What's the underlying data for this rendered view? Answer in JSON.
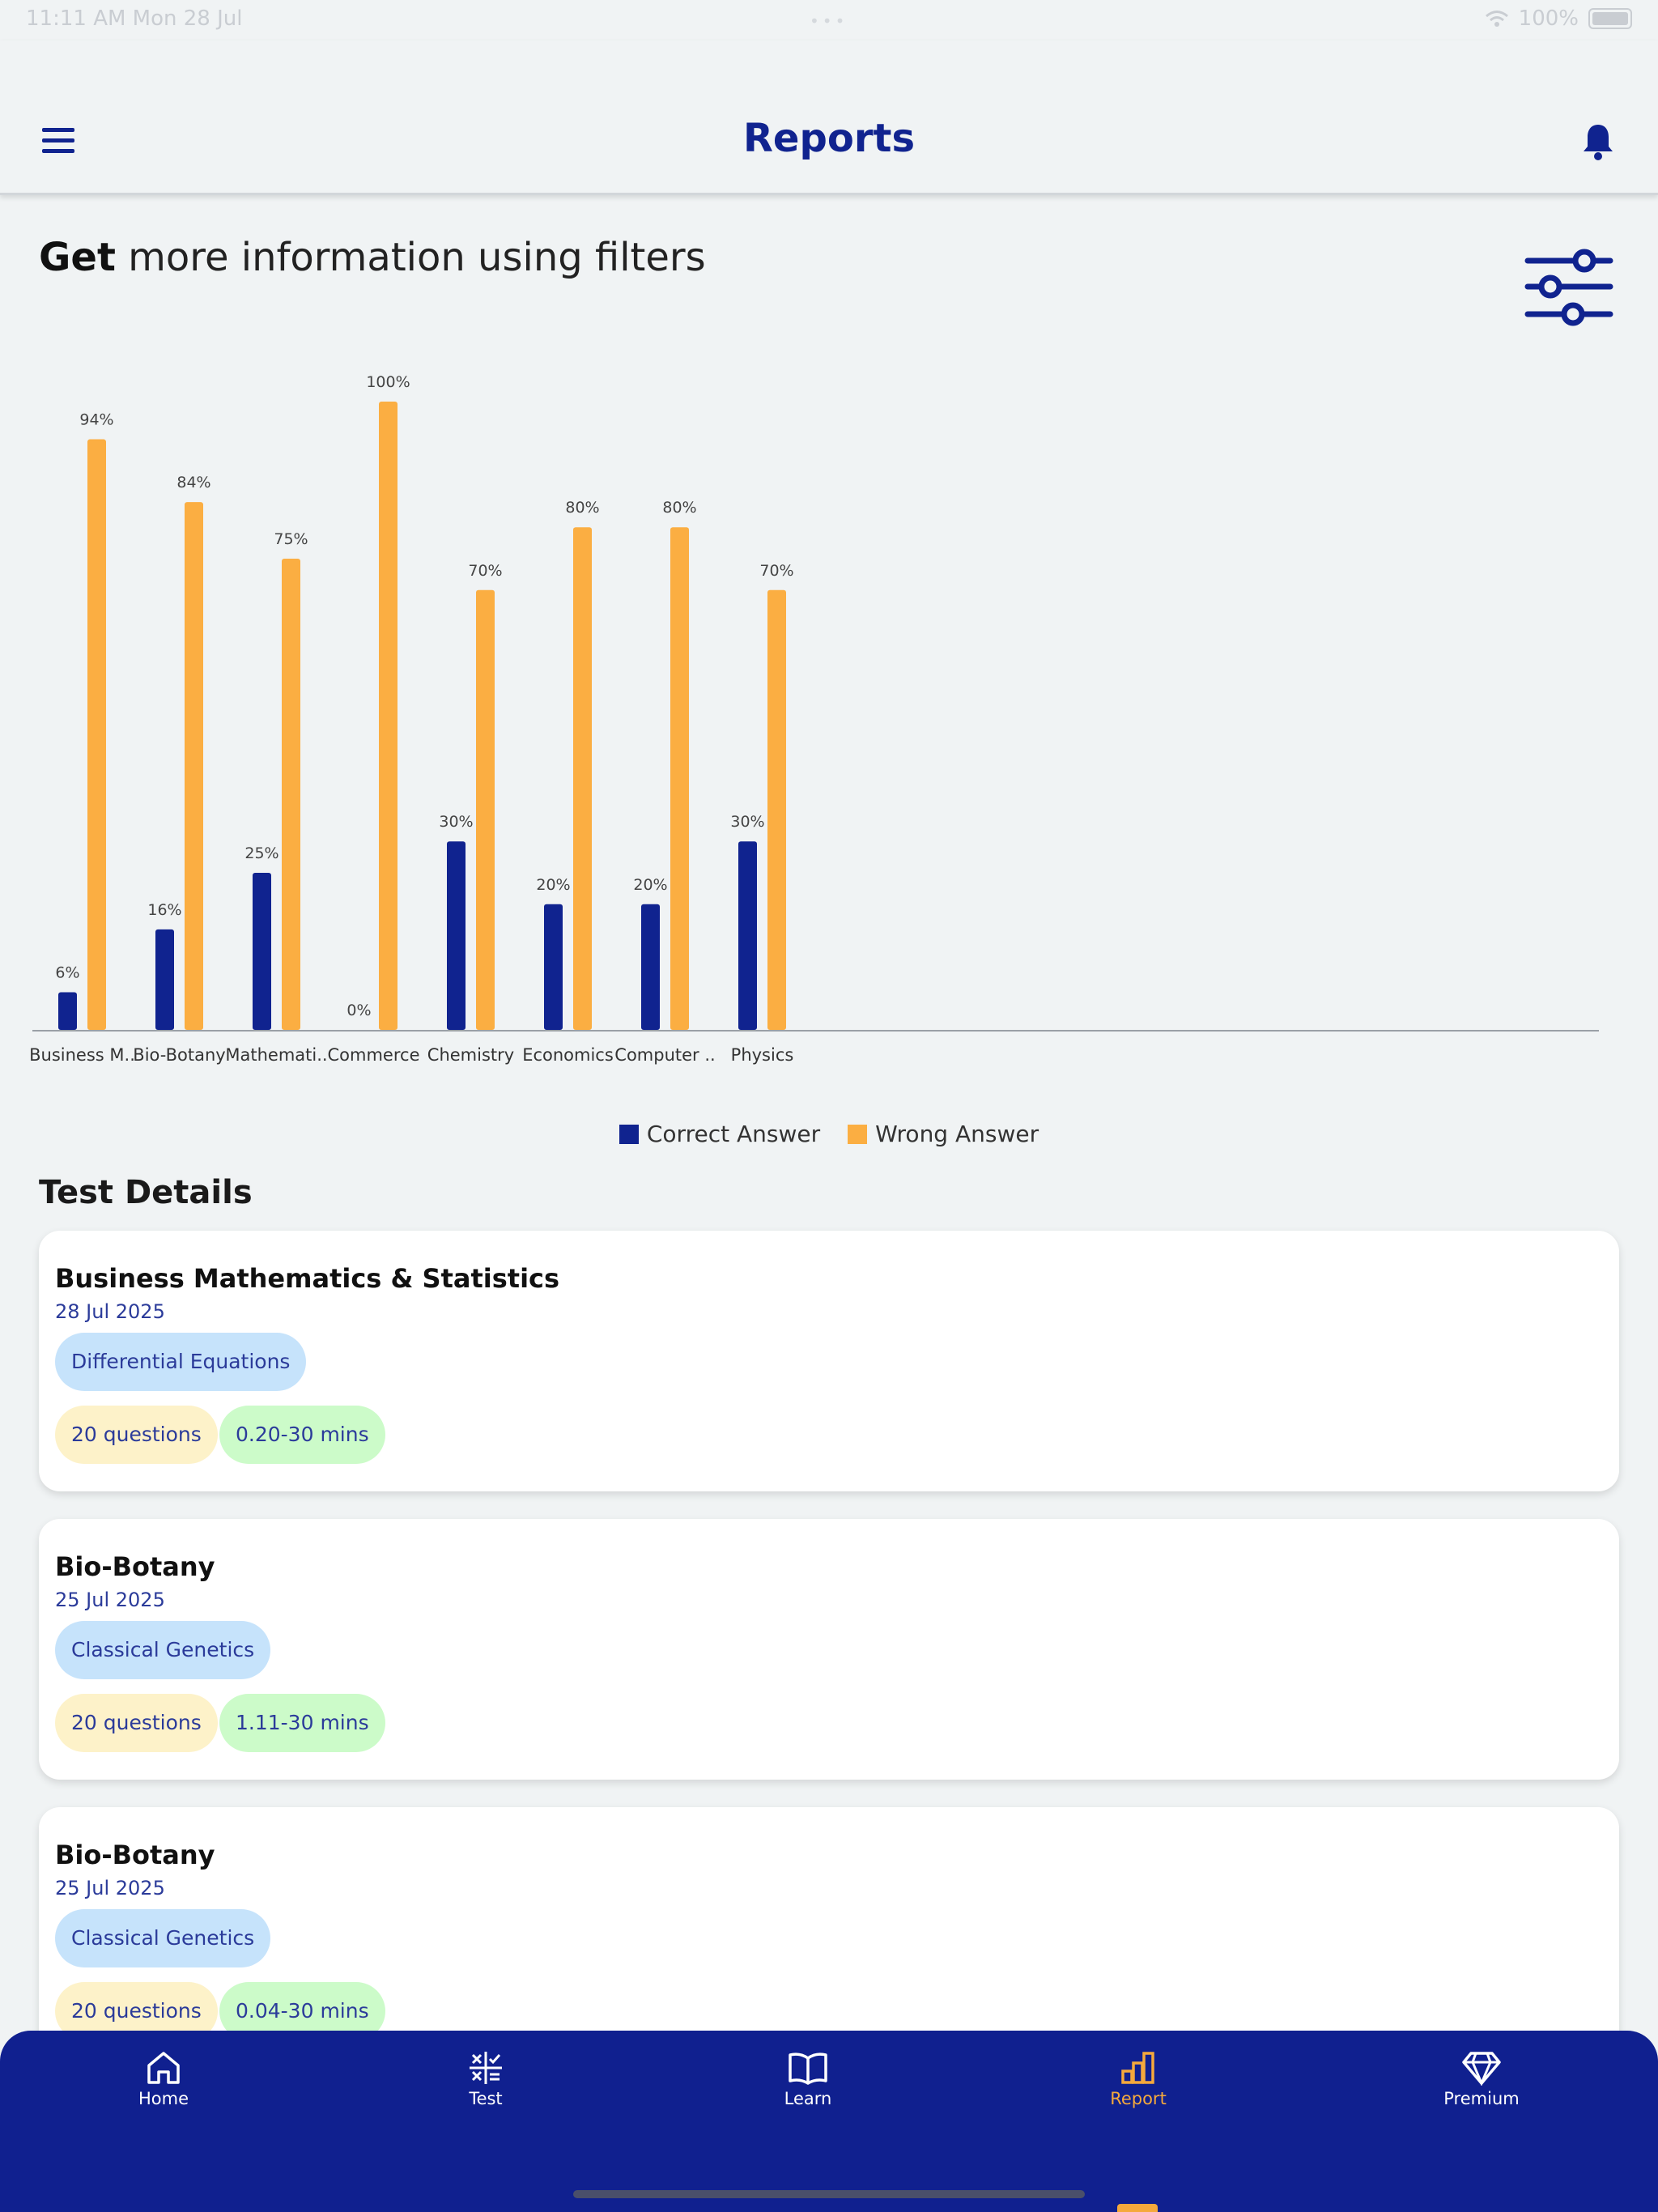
{
  "status": {
    "time": "11:11 AM  Mon 28 Jul",
    "battery": "100%"
  },
  "header": {
    "title": "Reports"
  },
  "filter": {
    "bold": "Get",
    "text": " more information using filters"
  },
  "colors": {
    "primary": "#10238f",
    "correct": "#10238f",
    "wrong": "#fbae42"
  },
  "chart_data": {
    "type": "bar",
    "categories": [
      "Business M..",
      "Bio-Botany",
      "Mathemati..",
      "Commerce",
      "Chemistry",
      "Economics",
      "Computer ..",
      "Physics"
    ],
    "series": [
      {
        "name": "Correct Answer",
        "values": [
          6,
          16,
          25,
          0,
          30,
          20,
          20,
          30
        ]
      },
      {
        "name": "Wrong Answer",
        "values": [
          94,
          84,
          75,
          100,
          70,
          80,
          80,
          70
        ]
      }
    ],
    "value_suffix": "%",
    "ylim": [
      0,
      100
    ],
    "grid": false,
    "legend": "bottom-center"
  },
  "legend": {
    "correct": "Correct Answer",
    "wrong": "Wrong Answer"
  },
  "section": {
    "title": "Test Details"
  },
  "tests": [
    {
      "subject": "Business Mathematics & Statistics",
      "date": "28 Jul 2025",
      "topic": "Differential Equations",
      "questions": "20 questions",
      "time": "0.20-30 mins"
    },
    {
      "subject": "Bio-Botany",
      "date": "25 Jul 2025",
      "topic": "Classical Genetics",
      "questions": "20 questions",
      "time": "1.11-30 mins"
    },
    {
      "subject": "Bio-Botany",
      "date": "25 Jul 2025",
      "topic": "Classical Genetics",
      "questions": "20 questions",
      "time": "0.04-30 mins"
    }
  ],
  "nav": [
    {
      "label": "Home",
      "icon": "home-icon"
    },
    {
      "label": "Test",
      "icon": "test-icon"
    },
    {
      "label": "Learn",
      "icon": "book-icon"
    },
    {
      "label": "Report",
      "icon": "bar-chart-icon",
      "active": true
    },
    {
      "label": "Premium",
      "icon": "diamond-icon"
    }
  ]
}
